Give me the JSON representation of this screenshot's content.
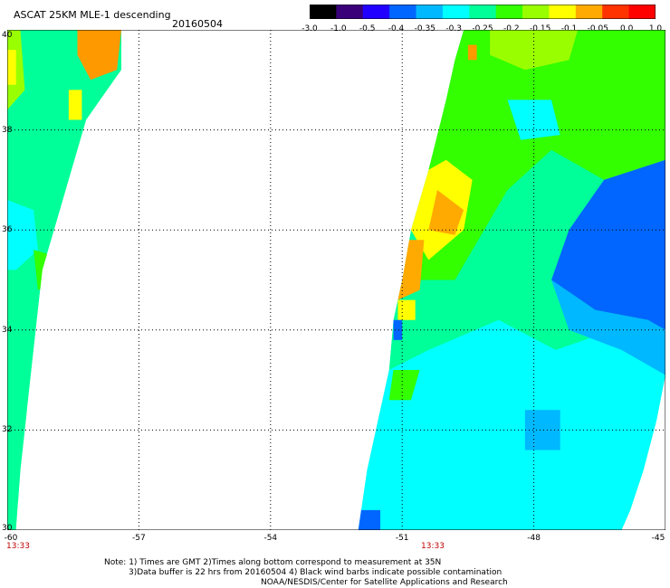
{
  "header": {
    "title": "ASCAT 25KM MLE-1 descending",
    "date": "20160504"
  },
  "colorbar": {
    "labels": [
      "-3.0",
      "-1.0",
      "-0.5",
      "-0.4",
      "-0.35",
      "-0.3",
      "-0.25",
      "-0.2",
      "-0.15",
      "-0.1",
      "-0.05",
      "0.0",
      "1.0"
    ],
    "colors": [
      "#000000",
      "#3a007a",
      "#2200ff",
      "#0066ff",
      "#00b8ff",
      "#00ffff",
      "#00ff99",
      "#33ff00",
      "#99ff00",
      "#ffff00",
      "#ffaa00",
      "#ff3300",
      "#ff0000"
    ]
  },
  "axes": {
    "x_ticks": [
      "-60",
      "-57",
      "-54",
      "-51",
      "-48",
      "-45"
    ],
    "y_ticks": [
      "40",
      "38",
      "36",
      "34",
      "32",
      "30"
    ]
  },
  "times": [
    "13:33",
    "13:33"
  ],
  "notes": {
    "line1": "Note: 1) Times are GMT 2)Times along bottom correspond to measurement at 35N",
    "line2": "3)Data buffer is 22 hrs from 20160504 4) Black wind barbs indicate possible contamination",
    "line3": "NOAA/NESDIS/Center for Satellite Applications and Research"
  },
  "swaths": [
    {
      "name": "west-swath",
      "polygon": [
        [
          -60,
          40
        ],
        [
          -57.4,
          40
        ],
        [
          -57.4,
          39.2
        ],
        [
          -58.2,
          38.2
        ],
        [
          -58.8,
          36.4
        ],
        [
          -59.2,
          35.2
        ],
        [
          -59.5,
          32.8
        ],
        [
          -59.7,
          31.2
        ],
        [
          -59.8,
          30
        ],
        [
          -60,
          30
        ]
      ],
      "regions": [
        {
          "color": "#ff9900",
          "polygon": [
            [
              -58.4,
              40
            ],
            [
              -57.4,
              40
            ],
            [
              -57.5,
              39.2
            ],
            [
              -58.1,
              39.0
            ],
            [
              -58.4,
              39.5
            ]
          ]
        },
        {
          "color": "#99ff00",
          "polygon": [
            [
              -60,
              40
            ],
            [
              -59.7,
              40
            ],
            [
              -59.6,
              38.8
            ],
            [
              -60,
              38.4
            ]
          ]
        },
        {
          "color": "#ffff00",
          "polygon": [
            [
              -60,
              39.6
            ],
            [
              -59.8,
              39.6
            ],
            [
              -59.8,
              38.9
            ],
            [
              -60,
              38.9
            ]
          ]
        },
        {
          "color": "#ffff00",
          "polygon": [
            [
              -58.6,
              38.8
            ],
            [
              -58.3,
              38.8
            ],
            [
              -58.3,
              38.2
            ],
            [
              -58.6,
              38.2
            ]
          ]
        },
        {
          "color": "#00ffff",
          "polygon": [
            [
              -60,
              36.6
            ],
            [
              -59.4,
              36.4
            ],
            [
              -59.3,
              35.6
            ],
            [
              -59.8,
              35.2
            ],
            [
              -60,
              35.2
            ]
          ]
        },
        {
          "color": "#33ff00",
          "polygon": [
            [
              -59.4,
              35.6
            ],
            [
              -59.0,
              35.5
            ],
            [
              -59.0,
              34.9
            ],
            [
              -59.3,
              34.8
            ]
          ]
        },
        {
          "color": "#ffff00",
          "polygon": [
            [
              -59.1,
              35.5
            ],
            [
              -58.9,
              35.5
            ],
            [
              -58.9,
              35.0
            ],
            [
              -59.1,
              35.0
            ]
          ]
        },
        {
          "color": "#00b8ff",
          "polygon": [
            [
              -59.3,
              34.2
            ],
            [
              -59.1,
              34.2
            ],
            [
              -59.1,
              33.6
            ],
            [
              -59.3,
              33.6
            ]
          ]
        },
        {
          "color": "#00ff99",
          "polygon": [
            [
              -60,
              32.4
            ],
            [
              -59.5,
              32.4
            ],
            [
              -59.7,
              30.6
            ],
            [
              -60,
              30.6
            ]
          ]
        }
      ]
    },
    {
      "name": "east-swath",
      "polygon": [
        [
          -49.6,
          40
        ],
        [
          -45,
          40
        ],
        [
          -45,
          33.1
        ],
        [
          -45.2,
          32.2
        ],
        [
          -45.5,
          31.2
        ],
        [
          -45.8,
          30.4
        ],
        [
          -46.0,
          30
        ],
        [
          -52.0,
          30
        ],
        [
          -51.8,
          31.2
        ],
        [
          -51.6,
          32.0
        ],
        [
          -51.3,
          33.2
        ],
        [
          -51.2,
          34.2
        ],
        [
          -51.0,
          35.0
        ],
        [
          -50.8,
          36.0
        ],
        [
          -50.4,
          37.2
        ],
        [
          -50.0,
          38.6
        ],
        [
          -49.8,
          39.4
        ]
      ],
      "regions": [
        {
          "color": "#33ff00",
          "polygon": [
            [
              -49.6,
              40
            ],
            [
              -45,
              40
            ],
            [
              -45,
              37.4
            ],
            [
              -46.4,
              37.0
            ],
            [
              -47.6,
              37.6
            ],
            [
              -48.6,
              36.8
            ],
            [
              -49.8,
              35.0
            ],
            [
              -50.8,
              35.0
            ],
            [
              -50.4,
              37.2
            ],
            [
              -50.0,
              38.6
            ],
            [
              -49.8,
              39.4
            ]
          ]
        },
        {
          "color": "#99ff00",
          "polygon": [
            [
              -49.0,
              40
            ],
            [
              -47.0,
              40
            ],
            [
              -47.2,
              39.4
            ],
            [
              -48.2,
              39.2
            ],
            [
              -49.0,
              39.5
            ]
          ]
        },
        {
          "color": "#00ffff",
          "polygon": [
            [
              -48.6,
              38.6
            ],
            [
              -47.6,
              38.6
            ],
            [
              -47.4,
              37.9
            ],
            [
              -48.3,
              37.8
            ]
          ]
        },
        {
          "color": "#00ffff",
          "polygon": [
            [
              -52.0,
              30
            ],
            [
              -46.0,
              30
            ],
            [
              -45.8,
              30.4
            ],
            [
              -45.5,
              31.2
            ],
            [
              -45.2,
              32.2
            ],
            [
              -45,
              33.1
            ],
            [
              -45,
              33.6
            ],
            [
              -46.2,
              34.0
            ],
            [
              -47.5,
              33.6
            ],
            [
              -48.8,
              34.2
            ],
            [
              -50.4,
              33.6
            ],
            [
              -51.3,
              33.2
            ],
            [
              -51.6,
              32.0
            ],
            [
              -51.8,
              31.2
            ]
          ]
        },
        {
          "color": "#0066ff",
          "polygon": [
            [
              -45,
              37.4
            ],
            [
              -46.4,
              37.0
            ],
            [
              -47.2,
              36.0
            ],
            [
              -47.6,
              35.0
            ],
            [
              -46.6,
              34.4
            ],
            [
              -45.4,
              34.2
            ],
            [
              -45,
              34.0
            ]
          ]
        },
        {
          "color": "#00b8ff",
          "polygon": [
            [
              -47.6,
              35.0
            ],
            [
              -46.6,
              34.4
            ],
            [
              -45.4,
              34.2
            ],
            [
              -45,
              34.0
            ],
            [
              -45,
              33.1
            ],
            [
              -46.0,
              33.6
            ],
            [
              -47.2,
              34.0
            ]
          ]
        },
        {
          "color": "#00b8ff",
          "polygon": [
            [
              -48.2,
              32.4
            ],
            [
              -47.4,
              32.4
            ],
            [
              -47.4,
              31.6
            ],
            [
              -48.2,
              31.6
            ]
          ]
        },
        {
          "color": "#ffff00",
          "polygon": [
            [
              -50.0,
              37.4
            ],
            [
              -49.4,
              37.0
            ],
            [
              -49.6,
              36.0
            ],
            [
              -50.4,
              35.4
            ],
            [
              -50.8,
              36.0
            ],
            [
              -50.4,
              37.2
            ]
          ]
        },
        {
          "color": "#ffaa00",
          "polygon": [
            [
              -50.2,
              36.8
            ],
            [
              -49.6,
              36.4
            ],
            [
              -49.8,
              35.9
            ],
            [
              -50.4,
              36.0
            ]
          ]
        },
        {
          "color": "#ffaa00",
          "polygon": [
            [
              -50.9,
              35.8
            ],
            [
              -50.5,
              35.8
            ],
            [
              -50.6,
              34.8
            ],
            [
              -51.1,
              34.6
            ]
          ]
        },
        {
          "color": "#ffff00",
          "polygon": [
            [
              -51.1,
              34.6
            ],
            [
              -50.7,
              34.6
            ],
            [
              -50.7,
              34.2
            ],
            [
              -51.1,
              34.2
            ]
          ]
        },
        {
          "color": "#0066ff",
          "polygon": [
            [
              -51.2,
              34.2
            ],
            [
              -51.0,
              34.2
            ],
            [
              -51.0,
              33.8
            ],
            [
              -51.2,
              33.8
            ]
          ]
        },
        {
          "color": "#0066ff",
          "polygon": [
            [
              -52.0,
              30.4
            ],
            [
              -51.5,
              30.4
            ],
            [
              -51.5,
              30
            ],
            [
              -52.0,
              30
            ]
          ]
        },
        {
          "color": "#33ff00",
          "polygon": [
            [
              -51.2,
              33.2
            ],
            [
              -50.6,
              33.2
            ],
            [
              -50.8,
              32.6
            ],
            [
              -51.3,
              32.6
            ]
          ]
        },
        {
          "color": "#ff9900",
          "polygon": [
            [
              -49.5,
              39.7
            ],
            [
              -49.3,
              39.7
            ],
            [
              -49.3,
              39.4
            ],
            [
              -49.5,
              39.4
            ]
          ]
        }
      ]
    }
  ],
  "gridlines": {
    "lon": [
      -57,
      -54,
      -51,
      -48
    ],
    "lat": [
      38,
      36,
      34,
      32
    ]
  }
}
